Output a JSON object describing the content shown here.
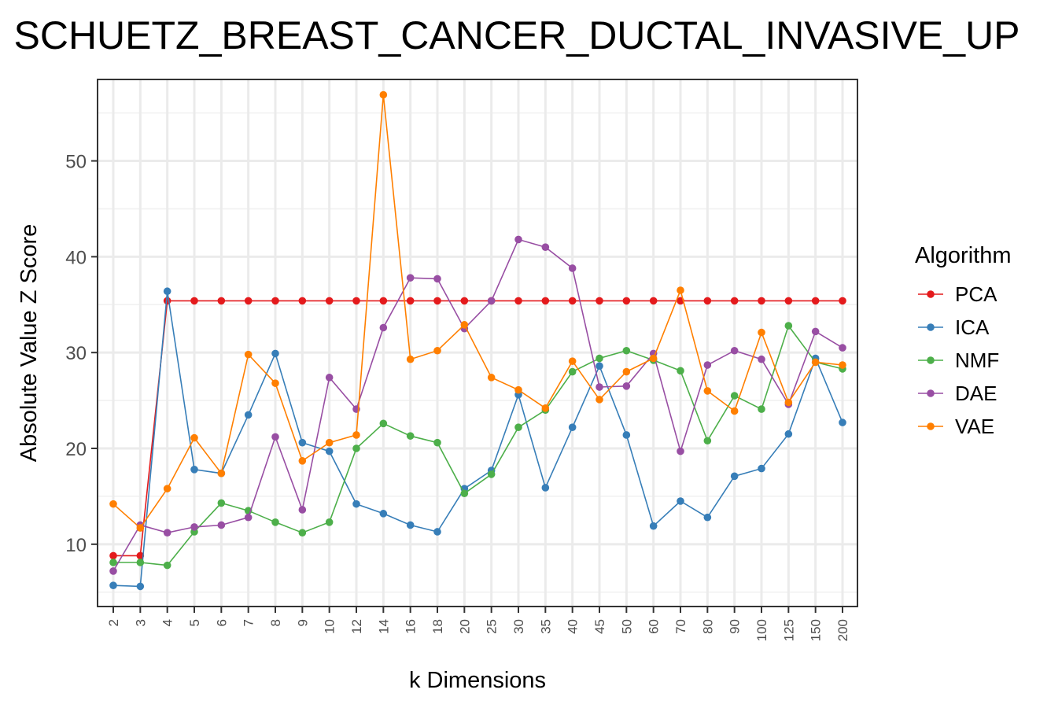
{
  "chart_data": {
    "type": "line",
    "title": "SCHUETZ_BREAST_CANCER_DUCTAL_INVASIVE_UP",
    "xlabel": "k Dimensions",
    "ylabel": "Absolute Value Z Score",
    "categories": [
      "2",
      "3",
      "4",
      "5",
      "6",
      "7",
      "8",
      "9",
      "10",
      "12",
      "14",
      "16",
      "18",
      "20",
      "25",
      "30",
      "35",
      "40",
      "45",
      "50",
      "60",
      "70",
      "80",
      "90",
      "100",
      "125",
      "150",
      "200"
    ],
    "y_ticks": [
      10,
      20,
      30,
      40,
      50
    ],
    "ylim": [
      3.5,
      58.5
    ],
    "grid": true,
    "legend": {
      "title": "Algorithm",
      "position": "right"
    },
    "series": [
      {
        "name": "PCA",
        "color": "#e41a1c",
        "values": [
          8.8,
          8.8,
          35.4,
          35.4,
          35.4,
          35.4,
          35.4,
          35.4,
          35.4,
          35.4,
          35.4,
          35.4,
          35.4,
          35.4,
          35.4,
          35.4,
          35.4,
          35.4,
          35.4,
          35.4,
          35.4,
          35.4,
          35.4,
          35.4,
          35.4,
          35.4,
          35.4,
          35.4
        ]
      },
      {
        "name": "ICA",
        "color": "#377eb8",
        "values": [
          5.7,
          5.6,
          36.4,
          17.8,
          17.4,
          23.5,
          29.9,
          20.6,
          19.7,
          14.2,
          13.2,
          12.0,
          11.3,
          15.8,
          17.7,
          25.6,
          15.9,
          22.2,
          28.6,
          21.4,
          11.9,
          14.5,
          12.8,
          17.1,
          17.9,
          21.5,
          29.4,
          22.7
        ]
      },
      {
        "name": "NMF",
        "color": "#4daf4a",
        "values": [
          8.1,
          8.1,
          7.8,
          11.3,
          14.3,
          13.5,
          12.3,
          11.2,
          12.3,
          20.0,
          22.6,
          21.3,
          20.6,
          15.3,
          17.3,
          22.2,
          24.0,
          28.0,
          29.4,
          30.2,
          29.2,
          28.1,
          20.8,
          25.5,
          24.1,
          32.8,
          29.0,
          28.3
        ]
      },
      {
        "name": "DAE",
        "color": "#984ea3",
        "values": [
          7.2,
          12.0,
          11.2,
          11.8,
          12.0,
          12.8,
          21.2,
          13.6,
          27.4,
          24.1,
          32.6,
          37.8,
          37.7,
          32.5,
          35.4,
          41.8,
          41.0,
          38.8,
          26.4,
          26.5,
          29.9,
          19.7,
          28.7,
          30.2,
          29.3,
          24.6,
          32.2,
          30.5
        ]
      },
      {
        "name": "VAE",
        "color": "#ff7f00",
        "values": [
          14.2,
          11.7,
          15.8,
          21.1,
          17.4,
          29.8,
          26.8,
          18.7,
          20.6,
          21.4,
          56.9,
          29.3,
          30.2,
          32.9,
          27.4,
          26.1,
          24.2,
          29.1,
          25.1,
          28.0,
          29.4,
          36.5,
          26.0,
          23.9,
          32.1,
          24.8,
          29.0,
          28.7
        ]
      }
    ]
  }
}
